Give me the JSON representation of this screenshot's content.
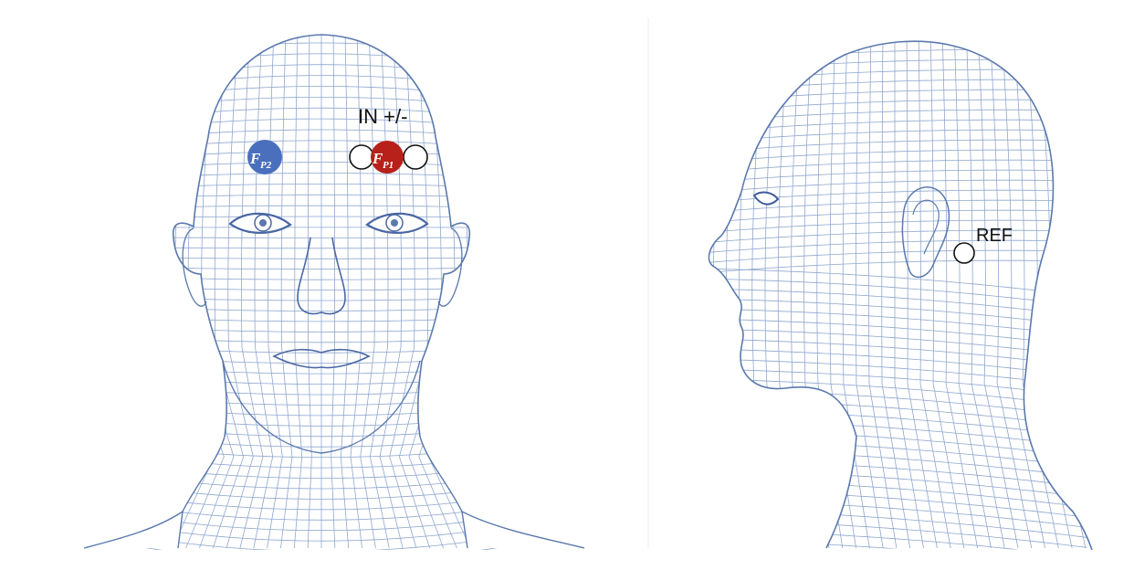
{
  "labels": {
    "in": "IN +/-",
    "ref": "REF"
  },
  "electrodes": {
    "fp2": {
      "base": "F",
      "sub": "P2",
      "color": "#4a6fbd"
    },
    "fp1": {
      "base": "F",
      "sub": "P1",
      "color": "#b8201a"
    }
  },
  "colors": {
    "mesh": "#5a79ad",
    "mesh_light": "#8fa7cf",
    "outline": "#111111"
  }
}
